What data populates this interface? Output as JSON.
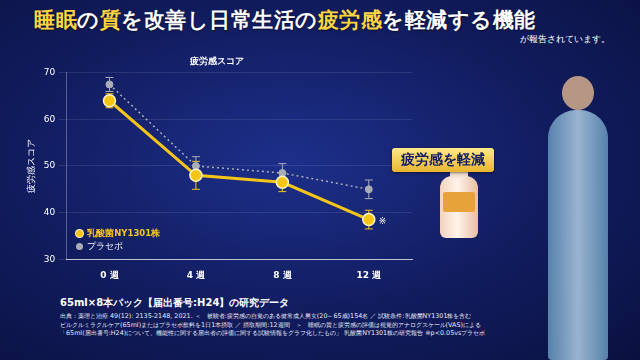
{
  "header": {
    "title": [
      {
        "text": "睡眠",
        "highlight": true
      },
      {
        "text": "の",
        "highlight": false
      },
      {
        "text": "質",
        "highlight": true
      },
      {
        "text": "を改善し日常生活の",
        "highlight": false
      },
      {
        "text": "疲労感",
        "highlight": true
      },
      {
        "text": "を軽減する機能",
        "highlight": false
      }
    ],
    "subtitle": "が報告されています。"
  },
  "chart_data": {
    "type": "line",
    "title": "疲労感スコア",
    "y_label": "疲労感スコア",
    "categories": [
      "0 週",
      "4 週",
      "8 週",
      "12 週"
    ],
    "series": [
      {
        "name": "乳酸菌NY1301株",
        "color": "#f5c518",
        "values": [
          64,
          48,
          46.5,
          38.5
        ],
        "errors": [
          1.5,
          3,
          2,
          2
        ],
        "marker": "circle",
        "line_style": "solid"
      },
      {
        "name": "プラセボ",
        "color": "#a9adb8",
        "values": [
          67.5,
          50,
          48.5,
          45
        ],
        "errors": [
          1.5,
          2,
          2,
          2
        ],
        "marker": "circle",
        "line_style": "dotted"
      }
    ],
    "ylim": [
      30,
      70
    ],
    "yticks": [
      30,
      40,
      50,
      60,
      70
    ],
    "grid": true,
    "legend": "lower left",
    "annotations": [
      {
        "text": "※",
        "x": "12 週",
        "y": 38.5
      }
    ]
  },
  "callout": "疲労感を軽減",
  "footer": {
    "heading": "65ml×8本パック【届出番号:H24】の研究データ",
    "lines": [
      "出典：薬理と治療 49(12): 2135-2148, 2021. ＜　被験者:疲労感の自覚のある健常成人男女(20～65歳)154名 ／ 試験条件:乳酸菌NY1301株を含む",
      "ピルクルミラクルケア(65ml)またはプラセボ飲料を1日1本摂取 ／ 摂取期間:12週間　＞　睡眠の質と疲労感の評価は視覚的アナログスケール(VAS)による",
      "「65ml(届出番号:H24)について、機能性に関する届出者の評価に関する試験情報をグラフ化したもの」 乳酸菌NY1301株の研究報告 ※p<0.05vsプラセボ"
    ]
  }
}
